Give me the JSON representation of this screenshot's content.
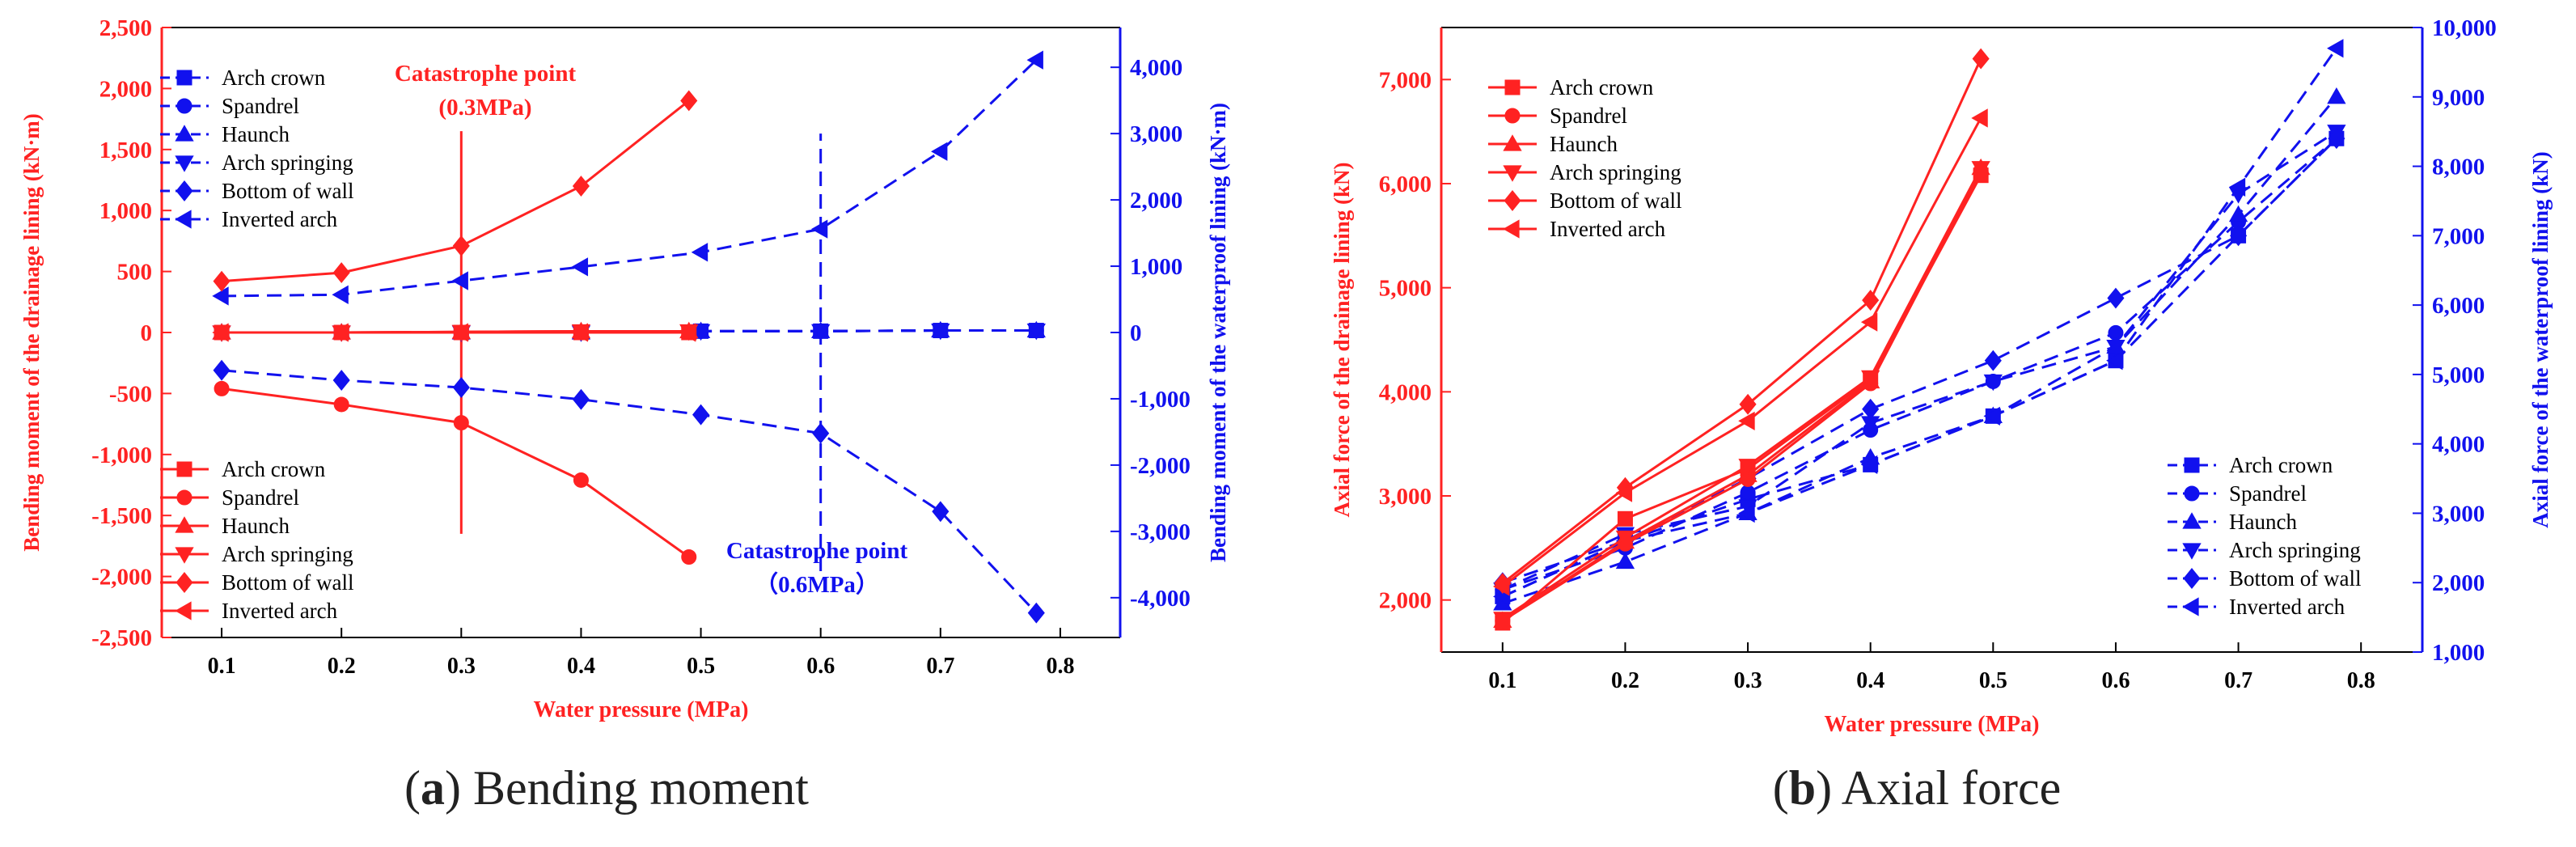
{
  "panel_a_caption": {
    "letter": "a",
    "text": "Bending moment"
  },
  "panel_b_caption": {
    "letter": "b",
    "text": "Axial force"
  },
  "chart_data": [
    {
      "type": "line",
      "xlabel": "Water pressure (MPa)",
      "ylabel": "Bending moment of the drainage lining (kN·m)",
      "y2label": "Bending moment of the waterproof lining (kN·m)",
      "xlim": [
        0.05,
        0.85
      ],
      "xticks": [
        0.1,
        0.2,
        0.3,
        0.4,
        0.5,
        0.6,
        0.7,
        0.8
      ],
      "ylim": [
        -2500,
        2500
      ],
      "yticks": [
        -2500,
        -2000,
        -1500,
        -1000,
        -500,
        0,
        500,
        1000,
        1500,
        2000,
        2500
      ],
      "y2lim": [
        -4600,
        4600
      ],
      "y2ticks": [
        -4000,
        -3000,
        -2000,
        -1000,
        0,
        1000,
        2000,
        3000,
        4000
      ],
      "colors": {
        "drainage": "#ff2222",
        "waterproof": "#1111ee"
      },
      "series_drainage": [
        {
          "name": "Arch crown",
          "marker": "square",
          "x": [
            0.1,
            0.2,
            0.3,
            0.4,
            0.49
          ],
          "y": [
            0,
            0,
            0,
            0,
            0
          ]
        },
        {
          "name": "Spandrel",
          "marker": "circle",
          "x": [
            0.1,
            0.2,
            0.3,
            0.4,
            0.49
          ],
          "y": [
            -460,
            -590,
            -740,
            -1210,
            -1840
          ]
        },
        {
          "name": "Haunch",
          "marker": "triangle-up",
          "x": [
            0.1,
            0.2,
            0.3,
            0.4,
            0.49
          ],
          "y": [
            0,
            0,
            5,
            10,
            10
          ]
        },
        {
          "name": "Arch springing",
          "marker": "triangle-down",
          "x": [
            0.1,
            0.2,
            0.3,
            0.4,
            0.49
          ],
          "y": [
            0,
            0,
            5,
            10,
            10
          ]
        },
        {
          "name": "Bottom of wall",
          "marker": "diamond",
          "x": [
            0.1,
            0.2,
            0.3,
            0.4,
            0.49
          ],
          "y": [
            420,
            490,
            710,
            1200,
            1900
          ]
        },
        {
          "name": "Inverted arch",
          "marker": "triangle-left",
          "x": [
            0.1,
            0.2,
            0.3,
            0.4,
            0.49
          ],
          "y": [
            0,
            0,
            0,
            0,
            0
          ]
        }
      ],
      "series_waterproof": [
        {
          "name": "Arch crown",
          "marker": "square",
          "x": [
            0.1,
            0.2,
            0.3,
            0.4,
            0.5,
            0.6,
            0.7,
            0.78
          ],
          "y": [
            0,
            0,
            0,
            0,
            20,
            20,
            30,
            30
          ]
        },
        {
          "name": "Spandrel",
          "marker": "circle",
          "x": [
            0.1,
            0.2,
            0.3,
            0.4,
            0.5,
            0.6,
            0.7,
            0.78
          ],
          "y": [
            0,
            0,
            0,
            0,
            20,
            20,
            30,
            30
          ]
        },
        {
          "name": "Haunch",
          "marker": "triangle-up",
          "x": [
            0.1,
            0.2,
            0.3,
            0.4,
            0.5,
            0.6,
            0.7,
            0.78
          ],
          "y": [
            0,
            0,
            0,
            0,
            20,
            20,
            30,
            30
          ]
        },
        {
          "name": "Arch springing",
          "marker": "triangle-down",
          "x": [
            0.1,
            0.2,
            0.3,
            0.4,
            0.5,
            0.6,
            0.7,
            0.78
          ],
          "y": [
            0,
            0,
            0,
            0,
            20,
            20,
            30,
            30
          ]
        },
        {
          "name": "Bottom of wall",
          "marker": "diamond",
          "x": [
            0.1,
            0.2,
            0.3,
            0.4,
            0.5,
            0.6,
            0.7,
            0.78
          ],
          "y": [
            -570,
            -720,
            -830,
            -1010,
            -1240,
            -1520,
            -2700,
            -4230
          ]
        },
        {
          "name": "Inverted arch",
          "marker": "triangle-left",
          "x": [
            0.1,
            0.2,
            0.3,
            0.4,
            0.5,
            0.6,
            0.7,
            0.78
          ],
          "y": [
            550,
            570,
            780,
            990,
            1210,
            1560,
            2730,
            4110
          ]
        }
      ],
      "annotations": [
        {
          "text": "Catastrophe point",
          "subtext": "(0.3MPa)",
          "color": "#ff2222",
          "x": 0.3,
          "line_from": -1650,
          "line_to": 1650,
          "axis": "left"
        },
        {
          "text": "Catastrophe point",
          "subtext": "（0.6MPa）",
          "color": "#1111ee",
          "x": 0.6,
          "line_from": -3600,
          "line_to": 3000,
          "axis": "right"
        }
      ],
      "legend_waterproof_position": "top-left",
      "legend_drainage_position": "bottom-left"
    },
    {
      "type": "line",
      "xlabel": "Water pressure (MPa)",
      "ylabel": "Axial force of the drainage lining (kN)",
      "y2label": "Axial force of the waterproof lining (kN)",
      "xlim": [
        0.05,
        0.85
      ],
      "xticks": [
        0.1,
        0.2,
        0.3,
        0.4,
        0.5,
        0.6,
        0.7,
        0.8
      ],
      "ylim": [
        1500,
        7500
      ],
      "yticks": [
        2000,
        3000,
        4000,
        5000,
        6000,
        7000
      ],
      "y2lim": [
        1000,
        10000
      ],
      "y2ticks": [
        1000,
        2000,
        3000,
        4000,
        5000,
        6000,
        7000,
        8000,
        9000,
        10000
      ],
      "colors": {
        "drainage": "#ff2222",
        "waterproof": "#1111ee"
      },
      "series_drainage": [
        {
          "name": "Arch crown",
          "marker": "square",
          "x": [
            0.1,
            0.2,
            0.3,
            0.4,
            0.49
          ],
          "y": [
            1780,
            2780,
            3260,
            4120,
            6080
          ]
        },
        {
          "name": "Spandrel",
          "marker": "circle",
          "x": [
            0.1,
            0.2,
            0.3,
            0.4,
            0.49
          ],
          "y": [
            1800,
            2540,
            3160,
            4080,
            6120
          ]
        },
        {
          "name": "Haunch",
          "marker": "triangle-up",
          "x": [
            0.1,
            0.2,
            0.3,
            0.4,
            0.49
          ],
          "y": [
            1800,
            2560,
            3200,
            4100,
            6150
          ]
        },
        {
          "name": "Arch springing",
          "marker": "triangle-down",
          "x": [
            0.1,
            0.2,
            0.3,
            0.4,
            0.49
          ],
          "y": [
            1820,
            2600,
            3290,
            4140,
            6150
          ]
        },
        {
          "name": "Bottom of wall",
          "marker": "diamond",
          "x": [
            0.1,
            0.2,
            0.3,
            0.4,
            0.49
          ],
          "y": [
            2160,
            3080,
            3880,
            4880,
            7200
          ]
        },
        {
          "name": "Inverted arch",
          "marker": "triangle-left",
          "x": [
            0.1,
            0.2,
            0.3,
            0.4,
            0.49
          ],
          "y": [
            2130,
            3030,
            3720,
            4670,
            6630
          ]
        }
      ],
      "series_waterproof": [
        {
          "name": "Arch crown",
          "marker": "square",
          "x": [
            0.1,
            0.2,
            0.3,
            0.4,
            0.5,
            0.6,
            0.7,
            0.78
          ],
          "y": [
            1800,
            2600,
            3200,
            3700,
            4400,
            5200,
            7000,
            8400
          ]
        },
        {
          "name": "Spandrel",
          "marker": "circle",
          "x": [
            0.1,
            0.2,
            0.3,
            0.4,
            0.5,
            0.6,
            0.7,
            0.78
          ],
          "y": [
            1900,
            2500,
            3300,
            4200,
            4900,
            5600,
            7200,
            8400
          ]
        },
        {
          "name": "Haunch",
          "marker": "triangle-up",
          "x": [
            0.1,
            0.2,
            0.3,
            0.4,
            0.5,
            0.6,
            0.7,
            0.78
          ],
          "y": [
            1700,
            2300,
            3000,
            3800,
            4400,
            5400,
            7300,
            9000
          ]
        },
        {
          "name": "Arch springing",
          "marker": "triangle-down",
          "x": [
            0.1,
            0.2,
            0.3,
            0.4,
            0.5,
            0.6,
            0.7,
            0.78
          ],
          "y": [
            1900,
            2700,
            3100,
            4300,
            4900,
            5400,
            7600,
            8500
          ]
        },
        {
          "name": "Bottom of wall",
          "marker": "diamond",
          "x": [
            0.1,
            0.2,
            0.3,
            0.4,
            0.5,
            0.6,
            0.7,
            0.78
          ],
          "y": [
            2000,
            2600,
            3500,
            4500,
            5200,
            6100,
            7000,
            8400
          ]
        },
        {
          "name": "Inverted arch",
          "marker": "triangle-left",
          "x": [
            0.1,
            0.2,
            0.3,
            0.4,
            0.5,
            0.6,
            0.7,
            0.78
          ],
          "y": [
            1800,
            2600,
            3000,
            3700,
            4400,
            5200,
            7700,
            9700
          ]
        }
      ],
      "legend_drainage_position": "top-left",
      "legend_waterproof_position": "bottom-right"
    }
  ]
}
